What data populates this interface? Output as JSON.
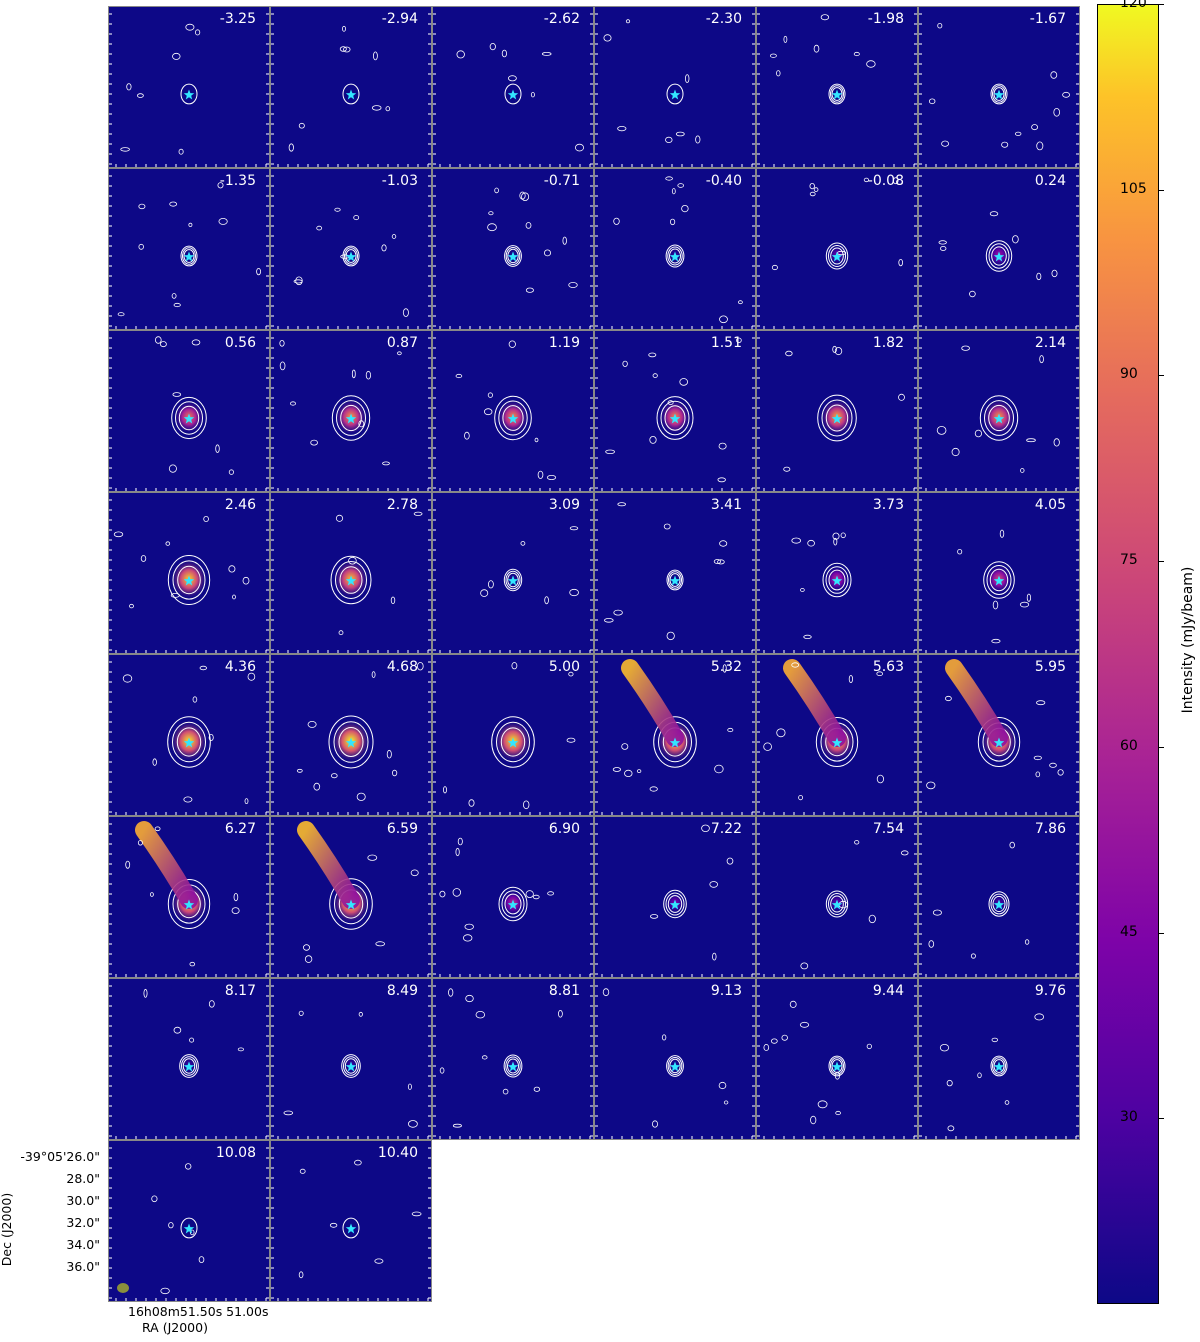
{
  "chart_data": {
    "type": "heatmap",
    "title": "",
    "velocities": [
      "-3.25",
      "-2.94",
      "-2.62",
      "-2.30",
      "-1.98",
      "-1.67",
      "-1.35",
      "-1.03",
      "-0.71",
      "-0.40",
      "-0.08",
      "0.24",
      "0.56",
      "0.87",
      "1.19",
      "1.51",
      "1.82",
      "2.14",
      "2.46",
      "2.78",
      "3.09",
      "3.41",
      "3.73",
      "4.05",
      "4.36",
      "4.68",
      "5.00",
      "5.32",
      "5.63",
      "5.95",
      "6.27",
      "6.59",
      "6.90",
      "7.22",
      "7.54",
      "7.86",
      "8.17",
      "8.49",
      "8.81",
      "9.13",
      "9.44",
      "9.76",
      "10.08",
      "10.40"
    ],
    "peak_intensity_mJy": [
      5,
      5,
      6,
      8,
      9,
      10,
      10,
      11,
      18,
      22,
      35,
      50,
      85,
      95,
      92,
      90,
      100,
      95,
      110,
      105,
      20,
      10,
      60,
      70,
      115,
      120,
      115,
      115,
      110,
      110,
      110,
      115,
      60,
      40,
      35,
      30,
      25,
      25,
      22,
      18,
      12,
      10,
      8,
      8
    ],
    "colorbar": {
      "label": "Intensity (mJy/beam)",
      "min": 15,
      "max": 120,
      "ticks": [
        "30",
        "45",
        "60",
        "75",
        "90",
        "105",
        "120"
      ],
      "colormap": "plasma"
    },
    "xlabel": "RA (J2000)",
    "ylabel": "Dec (J2000)",
    "x_ticks": [
      "16h08m51.50s",
      "51.00s"
    ],
    "y_ticks": [
      "-39°05'26.0\"",
      "28.0\"",
      "30.0\"",
      "32.0\"",
      "34.0\"",
      "36.0\""
    ],
    "marker": {
      "symbol": "star",
      "color": "#33e6ff"
    },
    "beam_color": "#8a8f3c",
    "contour_color": "#ffffff"
  }
}
